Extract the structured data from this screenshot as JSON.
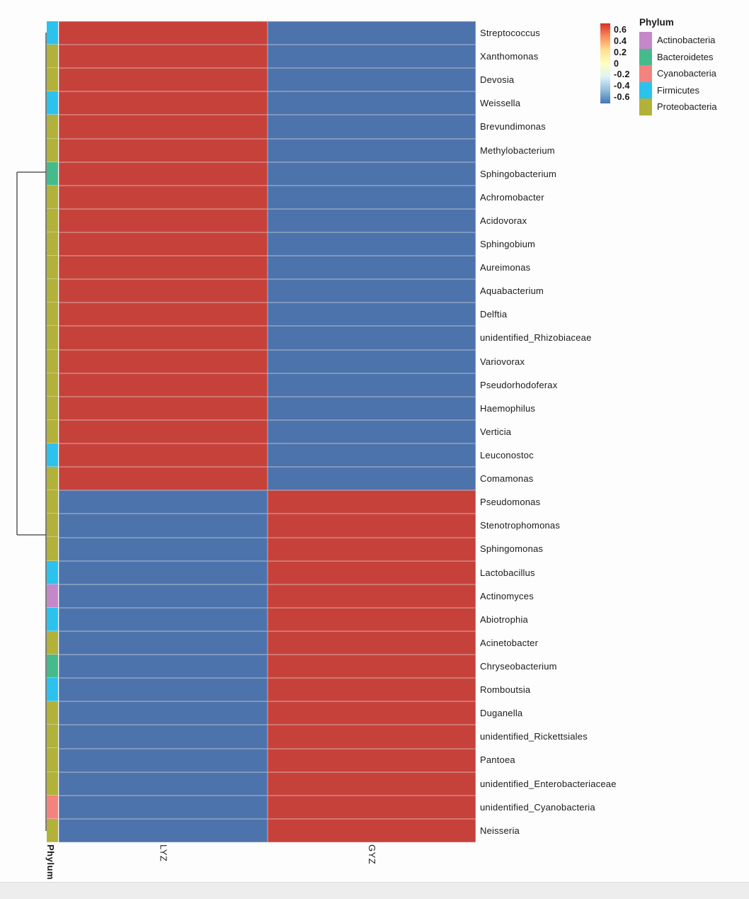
{
  "figure": {
    "column_labels": [
      "LYZ",
      "GYZ"
    ],
    "annotation_axis_label": "Phylum"
  },
  "scale_legend": {
    "tick_labels": [
      "0.6",
      "0.4",
      "0.2",
      "0",
      "-0.2",
      "-0.4",
      "-0.6"
    ],
    "gradient": [
      "#D73027",
      "#FC8D59",
      "#FEE090",
      "#FFFFBF",
      "#E0F3F8",
      "#91BFDB",
      "#4575B4"
    ]
  },
  "phylum_legend": {
    "title": "Phylum",
    "items": [
      {
        "label": "Actinobacteria",
        "color": "#C487C9"
      },
      {
        "label": "Bacteroidetes",
        "color": "#45BB8B"
      },
      {
        "label": "Cyanobacteria",
        "color": "#F4837D"
      },
      {
        "label": "Firmicutes",
        "color": "#2BC2EE"
      },
      {
        "label": "Proteobacteria",
        "color": "#B2B13A"
      }
    ]
  },
  "colors": {
    "positive_cell": "#C7413B",
    "negative_cell": "#4D73AD",
    "dendrogram": "#3C3C3C"
  },
  "chart_data": {
    "type": "heatmap",
    "columns": [
      "LYZ",
      "GYZ"
    ],
    "value_range": [
      -0.71,
      0.71
    ],
    "legend_tick_values": [
      0.6,
      0.4,
      0.2,
      0,
      -0.2,
      -0.4,
      -0.6
    ],
    "row_annotation_title": "Phylum",
    "rows": [
      {
        "label": "Streptococcus",
        "phylum": "Firmicutes",
        "values": [
          0.71,
          -0.71
        ]
      },
      {
        "label": "Xanthomonas",
        "phylum": "Proteobacteria",
        "values": [
          0.71,
          -0.71
        ]
      },
      {
        "label": "Devosia",
        "phylum": "Proteobacteria",
        "values": [
          0.71,
          -0.71
        ]
      },
      {
        "label": "Weissella",
        "phylum": "Firmicutes",
        "values": [
          0.71,
          -0.71
        ]
      },
      {
        "label": "Brevundimonas",
        "phylum": "Proteobacteria",
        "values": [
          0.71,
          -0.71
        ]
      },
      {
        "label": "Methylobacterium",
        "phylum": "Proteobacteria",
        "values": [
          0.71,
          -0.71
        ]
      },
      {
        "label": "Sphingobacterium",
        "phylum": "Bacteroidetes",
        "values": [
          0.71,
          -0.71
        ]
      },
      {
        "label": "Achromobacter",
        "phylum": "Proteobacteria",
        "values": [
          0.71,
          -0.71
        ]
      },
      {
        "label": "Acidovorax",
        "phylum": "Proteobacteria",
        "values": [
          0.71,
          -0.71
        ]
      },
      {
        "label": "Sphingobium",
        "phylum": "Proteobacteria",
        "values": [
          0.71,
          -0.71
        ]
      },
      {
        "label": "Aureimonas",
        "phylum": "Proteobacteria",
        "values": [
          0.71,
          -0.71
        ]
      },
      {
        "label": "Aquabacterium",
        "phylum": "Proteobacteria",
        "values": [
          0.71,
          -0.71
        ]
      },
      {
        "label": "Delftia",
        "phylum": "Proteobacteria",
        "values": [
          0.71,
          -0.71
        ]
      },
      {
        "label": "unidentified_Rhizobiaceae",
        "phylum": "Proteobacteria",
        "values": [
          0.71,
          -0.71
        ]
      },
      {
        "label": "Variovorax",
        "phylum": "Proteobacteria",
        "values": [
          0.71,
          -0.71
        ]
      },
      {
        "label": "Pseudorhodoferax",
        "phylum": "Proteobacteria",
        "values": [
          0.71,
          -0.71
        ]
      },
      {
        "label": "Haemophilus",
        "phylum": "Proteobacteria",
        "values": [
          0.71,
          -0.71
        ]
      },
      {
        "label": "Verticia",
        "phylum": "Proteobacteria",
        "values": [
          0.71,
          -0.71
        ]
      },
      {
        "label": "Leuconostoc",
        "phylum": "Firmicutes",
        "values": [
          0.71,
          -0.71
        ]
      },
      {
        "label": "Comamonas",
        "phylum": "Proteobacteria",
        "values": [
          0.71,
          -0.71
        ]
      },
      {
        "label": "Pseudomonas",
        "phylum": "Proteobacteria",
        "values": [
          -0.71,
          0.71
        ]
      },
      {
        "label": "Stenotrophomonas",
        "phylum": "Proteobacteria",
        "values": [
          -0.71,
          0.71
        ]
      },
      {
        "label": "Sphingomonas",
        "phylum": "Proteobacteria",
        "values": [
          -0.71,
          0.71
        ]
      },
      {
        "label": "Lactobacillus",
        "phylum": "Firmicutes",
        "values": [
          -0.71,
          0.71
        ]
      },
      {
        "label": "Actinomyces",
        "phylum": "Actinobacteria",
        "values": [
          -0.71,
          0.71
        ]
      },
      {
        "label": "Abiotrophia",
        "phylum": "Firmicutes",
        "values": [
          -0.71,
          0.71
        ]
      },
      {
        "label": "Acinetobacter",
        "phylum": "Proteobacteria",
        "values": [
          -0.71,
          0.71
        ]
      },
      {
        "label": "Chryseobacterium",
        "phylum": "Bacteroidetes",
        "values": [
          -0.71,
          0.71
        ]
      },
      {
        "label": "Romboutsia",
        "phylum": "Firmicutes",
        "values": [
          -0.71,
          0.71
        ]
      },
      {
        "label": "Duganella",
        "phylum": "Proteobacteria",
        "values": [
          -0.71,
          0.71
        ]
      },
      {
        "label": "unidentified_Rickettsiales",
        "phylum": "Proteobacteria",
        "values": [
          -0.71,
          0.71
        ]
      },
      {
        "label": "Pantoea",
        "phylum": "Proteobacteria",
        "values": [
          -0.71,
          0.71
        ]
      },
      {
        "label": "unidentified_Enterobacteriaceae",
        "phylum": "Proteobacteria",
        "values": [
          -0.71,
          0.71
        ]
      },
      {
        "label": "unidentified_Cyanobacteria",
        "phylum": "Cyanobacteria",
        "values": [
          -0.71,
          0.71
        ]
      },
      {
        "label": "Neisseria",
        "phylum": "Proteobacteria",
        "values": [
          -0.71,
          0.71
        ]
      }
    ]
  }
}
